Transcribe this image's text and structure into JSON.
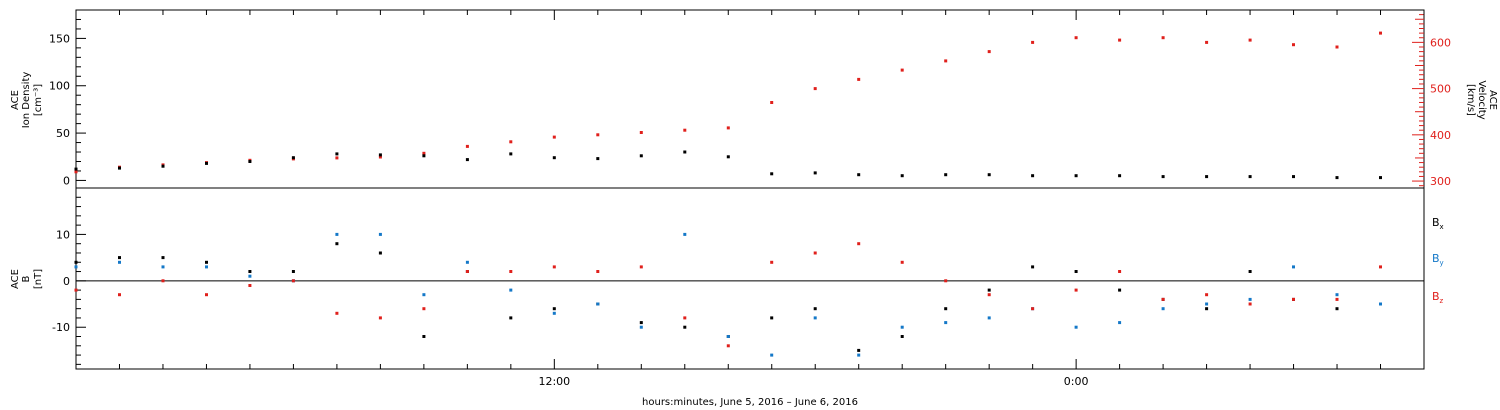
{
  "chart_data": [
    {
      "type": "scatter",
      "panel": "top",
      "y_label_lines": [
        "ACE",
        "Ion Density",
        "[cm⁻³]"
      ],
      "y2_label_lines": [
        "ACE",
        "Velocity",
        "[km/s]"
      ],
      "ylim": [
        -8,
        180
      ],
      "y_ticks": [
        0,
        50,
        100,
        150
      ],
      "y2lim": [
        285,
        670
      ],
      "y2_ticks": [
        300,
        400,
        500,
        600
      ],
      "xlim": [
        1.0,
        32.0
      ],
      "series": [
        {
          "name": "",
          "axis": "left",
          "color": "#000000",
          "description": "ion density",
          "x": [
            1.0,
            2.0,
            3.0,
            4.0,
            5.0,
            6.0,
            7.0,
            8.0,
            9.0,
            10.0,
            11.0,
            12.0,
            13.0,
            14.0,
            15.0,
            16.0,
            17.0,
            18.0,
            19.0,
            20.0,
            21.0,
            22.0,
            23.0,
            24.0,
            25.0,
            26.0,
            27.0,
            28.0,
            29.0,
            30.0,
            31.0
          ],
          "y": [
            12,
            13,
            15,
            18,
            20,
            24,
            28,
            27,
            26,
            22,
            28,
            24,
            23,
            26,
            30,
            25,
            7,
            8,
            6,
            5,
            6,
            6,
            5,
            5,
            5,
            4,
            4,
            4,
            4,
            3,
            3
          ]
        },
        {
          "name": "",
          "axis": "right",
          "color": "#e0201c",
          "description": "solar wind velocity",
          "x": [
            1.0,
            2.0,
            3.0,
            4.0,
            5.0,
            6.0,
            7.0,
            8.0,
            9.0,
            10.0,
            11.0,
            12.0,
            13.0,
            14.0,
            15.0,
            16.0,
            17.0,
            18.0,
            19.0,
            20.0,
            21.0,
            22.0,
            23.0,
            24.0,
            25.0,
            26.0,
            27.0,
            28.0,
            29.0,
            30.0,
            31.0
          ],
          "y": [
            320,
            330,
            335,
            340,
            345,
            348,
            350,
            352,
            360,
            375,
            385,
            395,
            400,
            405,
            410,
            415,
            470,
            500,
            520,
            540,
            560,
            580,
            600,
            610,
            605,
            610,
            600,
            605,
            595,
            590,
            620
          ]
        }
      ]
    },
    {
      "type": "scatter",
      "panel": "bottom",
      "y_label_lines": [
        "ACE",
        "B",
        "[nT]"
      ],
      "ylim": [
        -19,
        20
      ],
      "y_ticks": [
        -10,
        0,
        10
      ],
      "xlim": [
        1.0,
        32.0
      ],
      "zero_line": true,
      "series": [
        {
          "name": "Bx",
          "color": "#000000",
          "x": [
            1.0,
            2.0,
            3.0,
            4.0,
            5.0,
            6.0,
            7.0,
            8.0,
            9.0,
            10.0,
            11.0,
            12.0,
            13.0,
            14.0,
            15.0,
            16.0,
            17.0,
            18.0,
            19.0,
            20.0,
            21.0,
            22.0,
            23.0,
            24.0,
            25.0,
            26.0,
            27.0,
            28.0,
            29.0,
            30.0,
            31.0
          ],
          "y": [
            4,
            5,
            5,
            4,
            2,
            2,
            8,
            6,
            -12,
            2,
            -8,
            -6,
            -5,
            -9,
            -10,
            -12,
            -8,
            -6,
            -15,
            -12,
            -6,
            -2,
            3,
            2,
            -2,
            -4,
            -6,
            2,
            -4,
            -6,
            -5
          ]
        },
        {
          "name": "By",
          "color": "#1478c8",
          "x": [
            1.0,
            2.0,
            3.0,
            4.0,
            5.0,
            6.0,
            7.0,
            8.0,
            9.0,
            10.0,
            11.0,
            12.0,
            13.0,
            14.0,
            15.0,
            16.0,
            17.0,
            18.0,
            19.0,
            20.0,
            21.0,
            22.0,
            23.0,
            24.0,
            25.0,
            26.0,
            27.0,
            28.0,
            29.0,
            30.0,
            31.0
          ],
          "y": [
            3,
            4,
            3,
            3,
            1,
            0,
            10,
            10,
            -3,
            4,
            -2,
            -7,
            -5,
            -10,
            10,
            -12,
            -16,
            -8,
            -16,
            -10,
            -9,
            -8,
            -6,
            -10,
            -9,
            -6,
            -5,
            -4,
            3,
            -3,
            -5
          ]
        },
        {
          "name": "Bz",
          "color": "#e0201c",
          "x": [
            1.0,
            2.0,
            3.0,
            4.0,
            5.0,
            6.0,
            7.0,
            8.0,
            9.0,
            10.0,
            11.0,
            12.0,
            13.0,
            14.0,
            15.0,
            16.0,
            17.0,
            18.0,
            19.0,
            20.0,
            21.0,
            22.0,
            23.0,
            24.0,
            25.0,
            26.0,
            27.0,
            28.0,
            29.0,
            30.0,
            31.0
          ],
          "y": [
            -2,
            -3,
            0,
            -3,
            -1,
            0,
            -7,
            -8,
            -6,
            2,
            2,
            3,
            2,
            3,
            -8,
            -14,
            4,
            6,
            8,
            4,
            0,
            -3,
            -6,
            -2,
            2,
            -4,
            -3,
            -5,
            -4,
            -4,
            3
          ]
        }
      ],
      "legend": [
        {
          "main": "B",
          "sub": "x",
          "color": "#000000"
        },
        {
          "main": "B",
          "sub": "y",
          "color": "#1478c8"
        },
        {
          "main": "B",
          "sub": "z",
          "color": "#e0201c"
        }
      ]
    }
  ],
  "x_axis": {
    "tick_labels": [
      {
        "t": 12.0,
        "label": "12:00"
      },
      {
        "t": 24.0,
        "label": "0:00"
      }
    ],
    "title": "hours:minutes, June  5, 2016 – June  6, 2016"
  }
}
